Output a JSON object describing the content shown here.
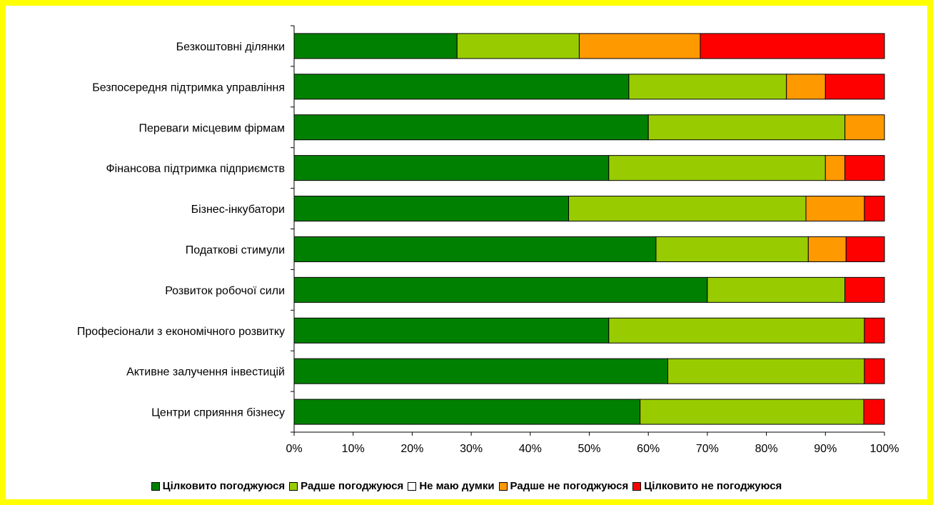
{
  "chart_data": {
    "type": "bar",
    "orientation": "horizontal",
    "stacked": "percent",
    "categories": [
      "Безкоштовні ділянки",
      "Безпосередня підтримка управління",
      "Переваги місцевим фірмам",
      "Фінансова підтримка підприємств",
      "Бізнес-інкубатори",
      "Податкові стимули",
      "Розвиток робочої сили",
      "Професіонали з економічного розвитку",
      "Активне залучення інвестицій",
      "Центри сприяння бізнесу"
    ],
    "series": [
      {
        "name": "Цілковито погоджуюся",
        "color": "#008000",
        "values": [
          27.6,
          56.7,
          60.0,
          53.3,
          46.5,
          61.3,
          70.0,
          53.3,
          63.3,
          58.6
        ]
      },
      {
        "name": "Радше погоджуюся",
        "color": "#99cc00",
        "values": [
          20.7,
          26.7,
          33.3,
          36.7,
          40.2,
          25.8,
          23.3,
          43.3,
          33.3,
          37.9
        ]
      },
      {
        "name": "Не маю думки",
        "color": "#ffffff",
        "values": [
          0,
          0,
          0,
          0,
          0,
          0,
          0,
          0,
          0,
          0
        ]
      },
      {
        "name": "Радше не погоджуюся",
        "color": "#ff9900",
        "values": [
          20.5,
          6.6,
          6.7,
          3.3,
          9.9,
          6.4,
          0,
          0,
          0,
          0
        ]
      },
      {
        "name": "Цілковито не погоджуюся",
        "color": "#ff0000",
        "values": [
          31.2,
          10.0,
          0,
          6.7,
          3.4,
          6.5,
          6.7,
          3.4,
          3.4,
          3.5
        ]
      }
    ],
    "x_ticks": [
      "0%",
      "10%",
      "20%",
      "30%",
      "40%",
      "50%",
      "60%",
      "70%",
      "80%",
      "90%",
      "100%"
    ],
    "xlim": [
      0,
      100
    ],
    "grid": false,
    "legend_position": "bottom"
  }
}
